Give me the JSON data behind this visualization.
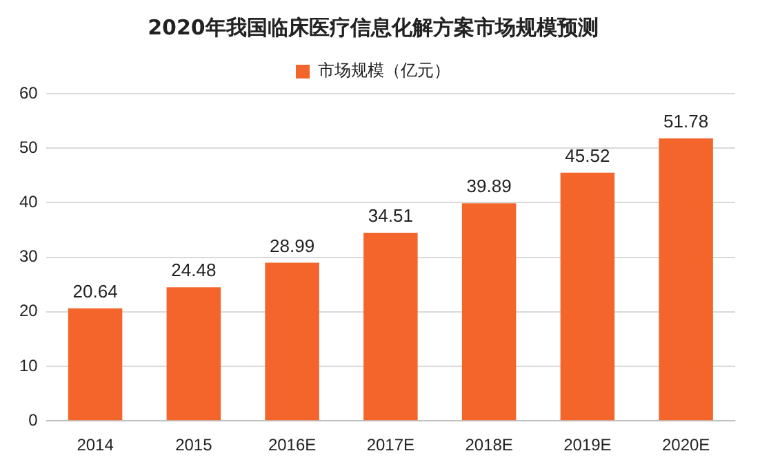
{
  "chart_data": {
    "type": "bar",
    "title": "2020年我国临床医疗信息化解方案市场规模预测",
    "categories": [
      "2014",
      "2015",
      "2016E",
      "2017E",
      "2018E",
      "2019E",
      "2020E"
    ],
    "series": [
      {
        "name": "市场规模（亿元）",
        "color": "#f4652c",
        "values": [
          20.64,
          24.48,
          28.99,
          34.51,
          39.89,
          45.52,
          51.78
        ]
      }
    ],
    "ylim": [
      0,
      60
    ],
    "yticks": [
      0,
      10,
      20,
      30,
      40,
      50,
      60
    ],
    "grid": "y",
    "legend": "top",
    "data_labels": true
  }
}
